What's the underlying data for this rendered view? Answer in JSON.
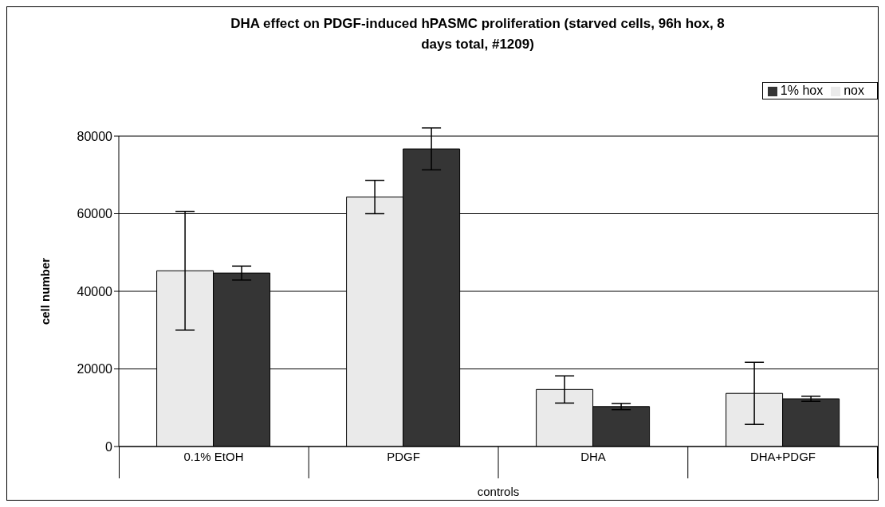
{
  "chart_data": {
    "type": "bar",
    "title": "DHA effect on PDGF-induced hPASMC proliferation (starved cells, 96h hox, 8 days total, #1209)",
    "xlabel": "controls",
    "ylabel": "cell number",
    "categories": [
      "0.1% EtOH",
      "PDGF",
      "DHA",
      "DHA+PDGF"
    ],
    "series": [
      {
        "name": "nox",
        "color": "#eaeaea",
        "values": [
          45300,
          64300,
          14700,
          13700
        ],
        "errors": [
          15300,
          4300,
          3500,
          8000
        ]
      },
      {
        "name": "1% hox",
        "color": "#353535",
        "values": [
          44700,
          76700,
          10300,
          12300
        ],
        "errors": [
          1800,
          5400,
          800,
          650
        ]
      }
    ],
    "ylim": [
      0,
      80000
    ],
    "yticks": [
      0,
      20000,
      40000,
      60000,
      80000
    ],
    "grid": "y",
    "legend": "top right"
  }
}
